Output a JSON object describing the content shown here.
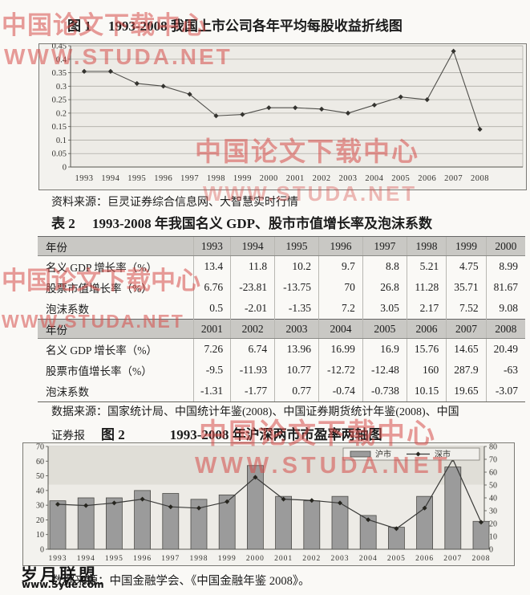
{
  "page": {
    "fig1_title": "图 1　 1993-2008 我国上市公司各年平均每股收益折线图",
    "source1": "资料来源：巨灵证券综合信息网、大智慧实时行情",
    "table_title": "表 2　 1993-2008 年我国名义 GDP、股市市值增长率及泡沫系数",
    "source2_line1": "数据来源：国家统计局、中国统计年鉴(2008)、中国证券期货统计年鉴(2008)、中国",
    "source2_line2": "证券报",
    "fig2_label": "图 2",
    "fig2_title": "1993-2008 年沪深两市市盈率两轴图",
    "source3": "数据来源：中国金融学会、《中国金融年鉴 2008》。",
    "footer_logo": "岁月联盟",
    "footer_url": "www.Syue.com"
  },
  "watermarks": [
    "中国论文下载中心",
    "WWW.STUDA.NET",
    "中国论文下载中心",
    "WWW.STUDA.NET",
    "中国论文下载中心",
    "WWW.STUDA.NET",
    "中国论文下载中心",
    "WWW.STUDA.NET"
  ],
  "table": {
    "header_label": "年份",
    "row_labels": [
      "名义 GDP 增长率（%）",
      "股票市值增长率（%）",
      "泡沫系数"
    ],
    "blocks": [
      {
        "years": [
          "1993",
          "1994",
          "1995",
          "1996",
          "1997",
          "1998",
          "1999",
          "2000"
        ],
        "rows": [
          [
            "13.4",
            "11.8",
            "10.2",
            "9.7",
            "8.8",
            "5.21",
            "4.75",
            "8.99"
          ],
          [
            "6.76",
            "-23.81",
            "-13.75",
            "70",
            "26.8",
            "11.28",
            "35.71",
            "81.67"
          ],
          [
            "0.5",
            "-2.01",
            "-1.35",
            "7.2",
            "3.05",
            "2.17",
            "7.52",
            "9.08"
          ]
        ]
      },
      {
        "years": [
          "2001",
          "2002",
          "2003",
          "2004",
          "2005",
          "2006",
          "2007",
          "2008"
        ],
        "rows": [
          [
            "7.26",
            "6.74",
            "13.96",
            "16.99",
            "16.9",
            "15.76",
            "14.65",
            "20.49"
          ],
          [
            "-9.5",
            "-11.93",
            "10.77",
            "-12.72",
            "-12.48",
            "160",
            "287.9",
            "-63"
          ],
          [
            "-1.31",
            "-1.77",
            "0.77",
            "-0.74",
            "-0.738",
            "10.15",
            "19.65",
            "-3.07"
          ]
        ]
      }
    ]
  },
  "chart_data": [
    {
      "id": "fig1",
      "type": "line",
      "title": "图1 1993-2008我国上市公司各年平均每股收益折线图",
      "x": [
        "1993",
        "1994",
        "1995",
        "1996",
        "1997",
        "1998",
        "1999",
        "2000",
        "2001",
        "2002",
        "2003",
        "2004",
        "2005",
        "2006",
        "2007",
        "2008"
      ],
      "series": [
        {
          "name": "平均每股收益",
          "values": [
            0.355,
            0.355,
            0.31,
            0.3,
            0.27,
            0.19,
            0.195,
            0.22,
            0.22,
            0.215,
            0.2,
            0.23,
            0.26,
            0.25,
            0.43,
            0.14
          ]
        }
      ],
      "ylim": [
        0,
        0.45
      ],
      "yticks": [
        "0",
        "0.05",
        "0.1",
        "0.15",
        "0.2",
        "0.25",
        "0.3",
        "0.35",
        "0.4",
        "0.45"
      ],
      "grid": true,
      "legend": "none",
      "xlabel": "",
      "ylabel": ""
    },
    {
      "id": "fig2",
      "type": "bar-line-dual-axis",
      "title": "图2 1993-2008年沪深两市市盈率两轴图",
      "categories": [
        "1993",
        "1994",
        "1995",
        "1996",
        "1997",
        "1998",
        "1999",
        "2000",
        "2001",
        "2002",
        "2003",
        "2004",
        "2005",
        "2006",
        "2007",
        "2008"
      ],
      "series": [
        {
          "name": "沪市",
          "type": "bar",
          "axis": "left",
          "values": [
            33,
            35,
            35,
            40,
            38,
            34,
            37,
            57,
            36,
            33,
            36,
            23,
            15,
            36,
            56,
            19
          ]
        },
        {
          "name": "深市",
          "type": "line",
          "axis": "right",
          "values": [
            35,
            34,
            36,
            39,
            33,
            32,
            37,
            56,
            39,
            38,
            36,
            23,
            16,
            32,
            70,
            21
          ]
        }
      ],
      "left_ylim": [
        0,
        70
      ],
      "right_ylim": [
        0,
        80
      ],
      "left_yticks": [
        "0",
        "10",
        "20",
        "30",
        "40",
        "50",
        "60",
        "70"
      ],
      "right_yticks": [
        "0",
        "10",
        "20",
        "30",
        "40",
        "50",
        "60",
        "70",
        "80"
      ],
      "grid": false,
      "legend_position": "top-right"
    }
  ],
  "colors": {
    "watermark_red": "#d54c48",
    "bar_gray": "#9b9b9b",
    "line_dark": "#3a3a38",
    "table_header_bg": "#c9c8c4",
    "chart_bg": "#edebe6"
  }
}
